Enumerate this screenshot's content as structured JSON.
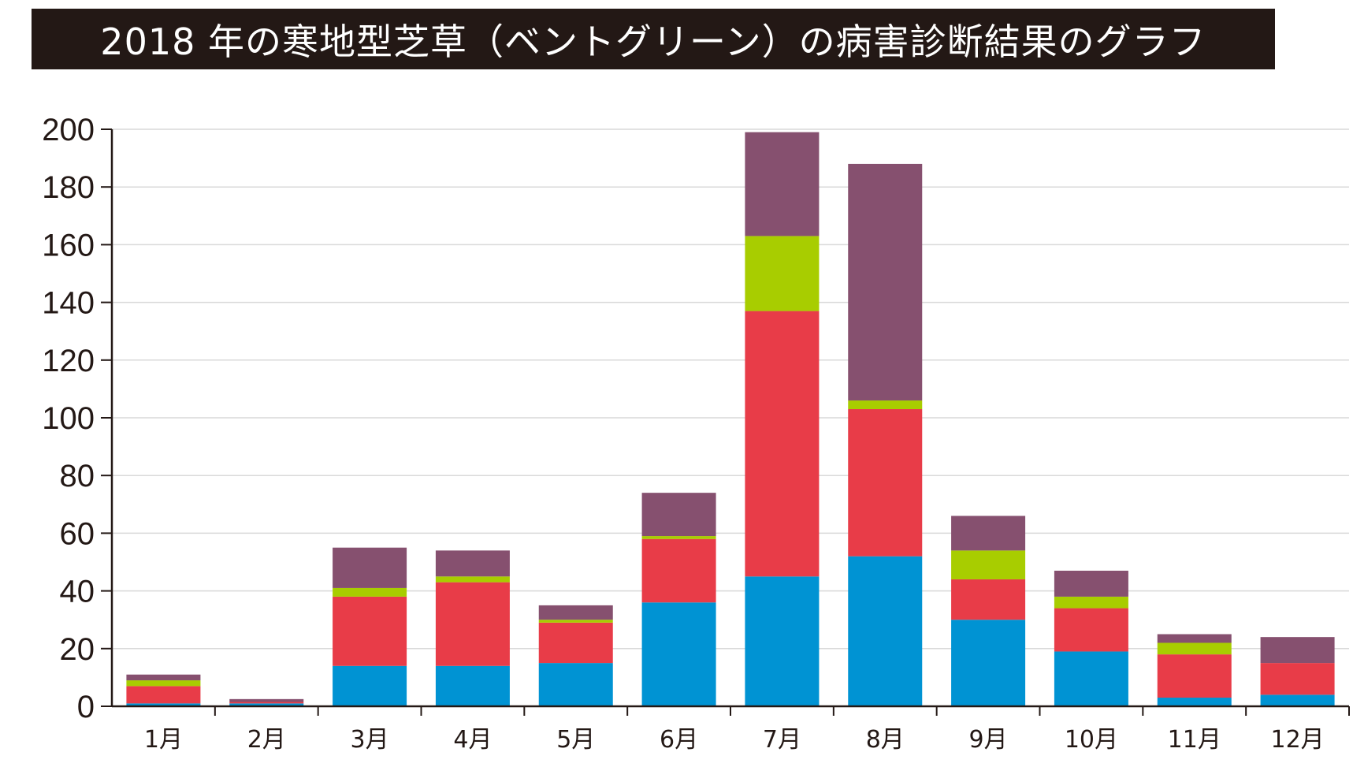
{
  "chart_data": {
    "type": "bar",
    "stacked": true,
    "title": "2018 年の寒地型芝草（ベントグリーン）の病害診断結果のグラフ",
    "categories": [
      "1月",
      "2月",
      "3月",
      "4月",
      "5月",
      "6月",
      "7月",
      "8月",
      "9月",
      "10月",
      "11月",
      "12月"
    ],
    "ylim": [
      0,
      200
    ],
    "yticks": [
      "0",
      "20",
      "40",
      "60",
      "80",
      "100",
      "120",
      "140",
      "160",
      "180",
      "200"
    ],
    "grid": true,
    "series": [
      {
        "color": "#0093d3",
        "values": [
          1,
          1,
          14,
          14,
          15,
          36,
          45,
          52,
          30,
          19,
          3,
          4
        ]
      },
      {
        "color": "#e83c48",
        "values": [
          6,
          0.5,
          24,
          29,
          14,
          22,
          92,
          51,
          14,
          15,
          15,
          11
        ]
      },
      {
        "color": "#a8cd00",
        "values": [
          2,
          0,
          3,
          2,
          1,
          1,
          26,
          3,
          10,
          4,
          4,
          0
        ]
      },
      {
        "color": "#86506f",
        "values": [
          2,
          1,
          14,
          9,
          5,
          15,
          36,
          82,
          12,
          9,
          3,
          9
        ]
      }
    ]
  }
}
